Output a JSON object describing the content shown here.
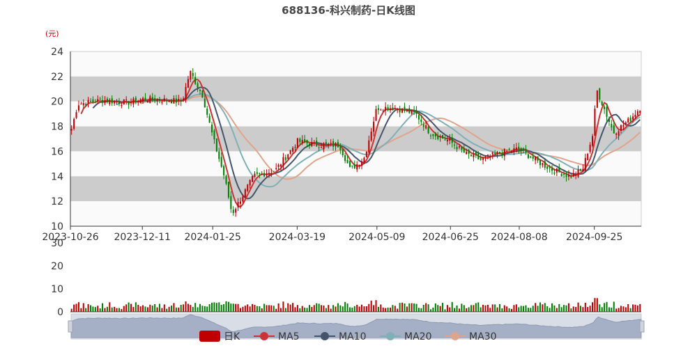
{
  "chart_data": {
    "type": "candlestick",
    "title": "688136-科兴制药-日K线图",
    "unit_label": "(元)",
    "price_axis": {
      "min": 10,
      "max": 24,
      "ticks": [
        "10",
        "12",
        "14",
        "16",
        "18",
        "20",
        "22",
        "24"
      ]
    },
    "volume_axis": {
      "min": 0,
      "max": 30,
      "ticks": [
        "0",
        "10",
        "20",
        "30"
      ]
    },
    "x_tick_labels": [
      "2023-10-26",
      "2023-12-11",
      "2024-01-25",
      "2024-03-19",
      "2024-05-09",
      "2024-06-25",
      "2024-08-08",
      "2024-09-25"
    ],
    "approx_close_path": [
      [
        "2023-10-26",
        17.8
      ],
      [
        "2023-10-30",
        19.8
      ],
      [
        "2023-11-15",
        20.1
      ],
      [
        "2023-12-01",
        19.9
      ],
      [
        "2023-12-11",
        20.2
      ],
      [
        "2023-12-25",
        20.1
      ],
      [
        "2024-01-05",
        20.0
      ],
      [
        "2024-01-10",
        22.4
      ],
      [
        "2024-01-18",
        20.5
      ],
      [
        "2024-01-25",
        17.0
      ],
      [
        "2024-02-01",
        14.0
      ],
      [
        "2024-02-06",
        11.0
      ],
      [
        "2024-02-20",
        14.0
      ],
      [
        "2024-03-05",
        14.5
      ],
      [
        "2024-03-19",
        16.8
      ],
      [
        "2024-04-01",
        16.5
      ],
      [
        "2024-04-15",
        16.5
      ],
      [
        "2024-04-22",
        14.5
      ],
      [
        "2024-05-01",
        15.5
      ],
      [
        "2024-05-09",
        19.5
      ],
      [
        "2024-05-20",
        19.5
      ],
      [
        "2024-06-03",
        19.0
      ],
      [
        "2024-06-12",
        17.5
      ],
      [
        "2024-06-25",
        16.8
      ],
      [
        "2024-07-05",
        15.8
      ],
      [
        "2024-07-15",
        15.3
      ],
      [
        "2024-07-25",
        15.8
      ],
      [
        "2024-08-08",
        16.2
      ],
      [
        "2024-08-20",
        15.2
      ],
      [
        "2024-08-30",
        14.5
      ],
      [
        "2024-09-10",
        14.0
      ],
      [
        "2024-09-18",
        14.5
      ],
      [
        "2024-09-25",
        17.5
      ],
      [
        "2024-09-27",
        21.0
      ],
      [
        "2024-10-08",
        17.5
      ],
      [
        "2024-10-18",
        18.5
      ],
      [
        "2024-10-25",
        19.5
      ]
    ],
    "volume_level": "low, mostly 0–5 with a few spikes near 5",
    "colors": {
      "up": "#c00000",
      "down": "#008000",
      "ma5": "#cc3333",
      "ma10": "#44556b",
      "ma20": "#7fb0b6",
      "ma30": "#e0a48a",
      "band": "#cccccc"
    },
    "legend": [
      "日K",
      "MA5",
      "MA10",
      "MA20",
      "MA30"
    ],
    "legend_position": "bottom-center",
    "grid": "horizontal alternating bands"
  }
}
